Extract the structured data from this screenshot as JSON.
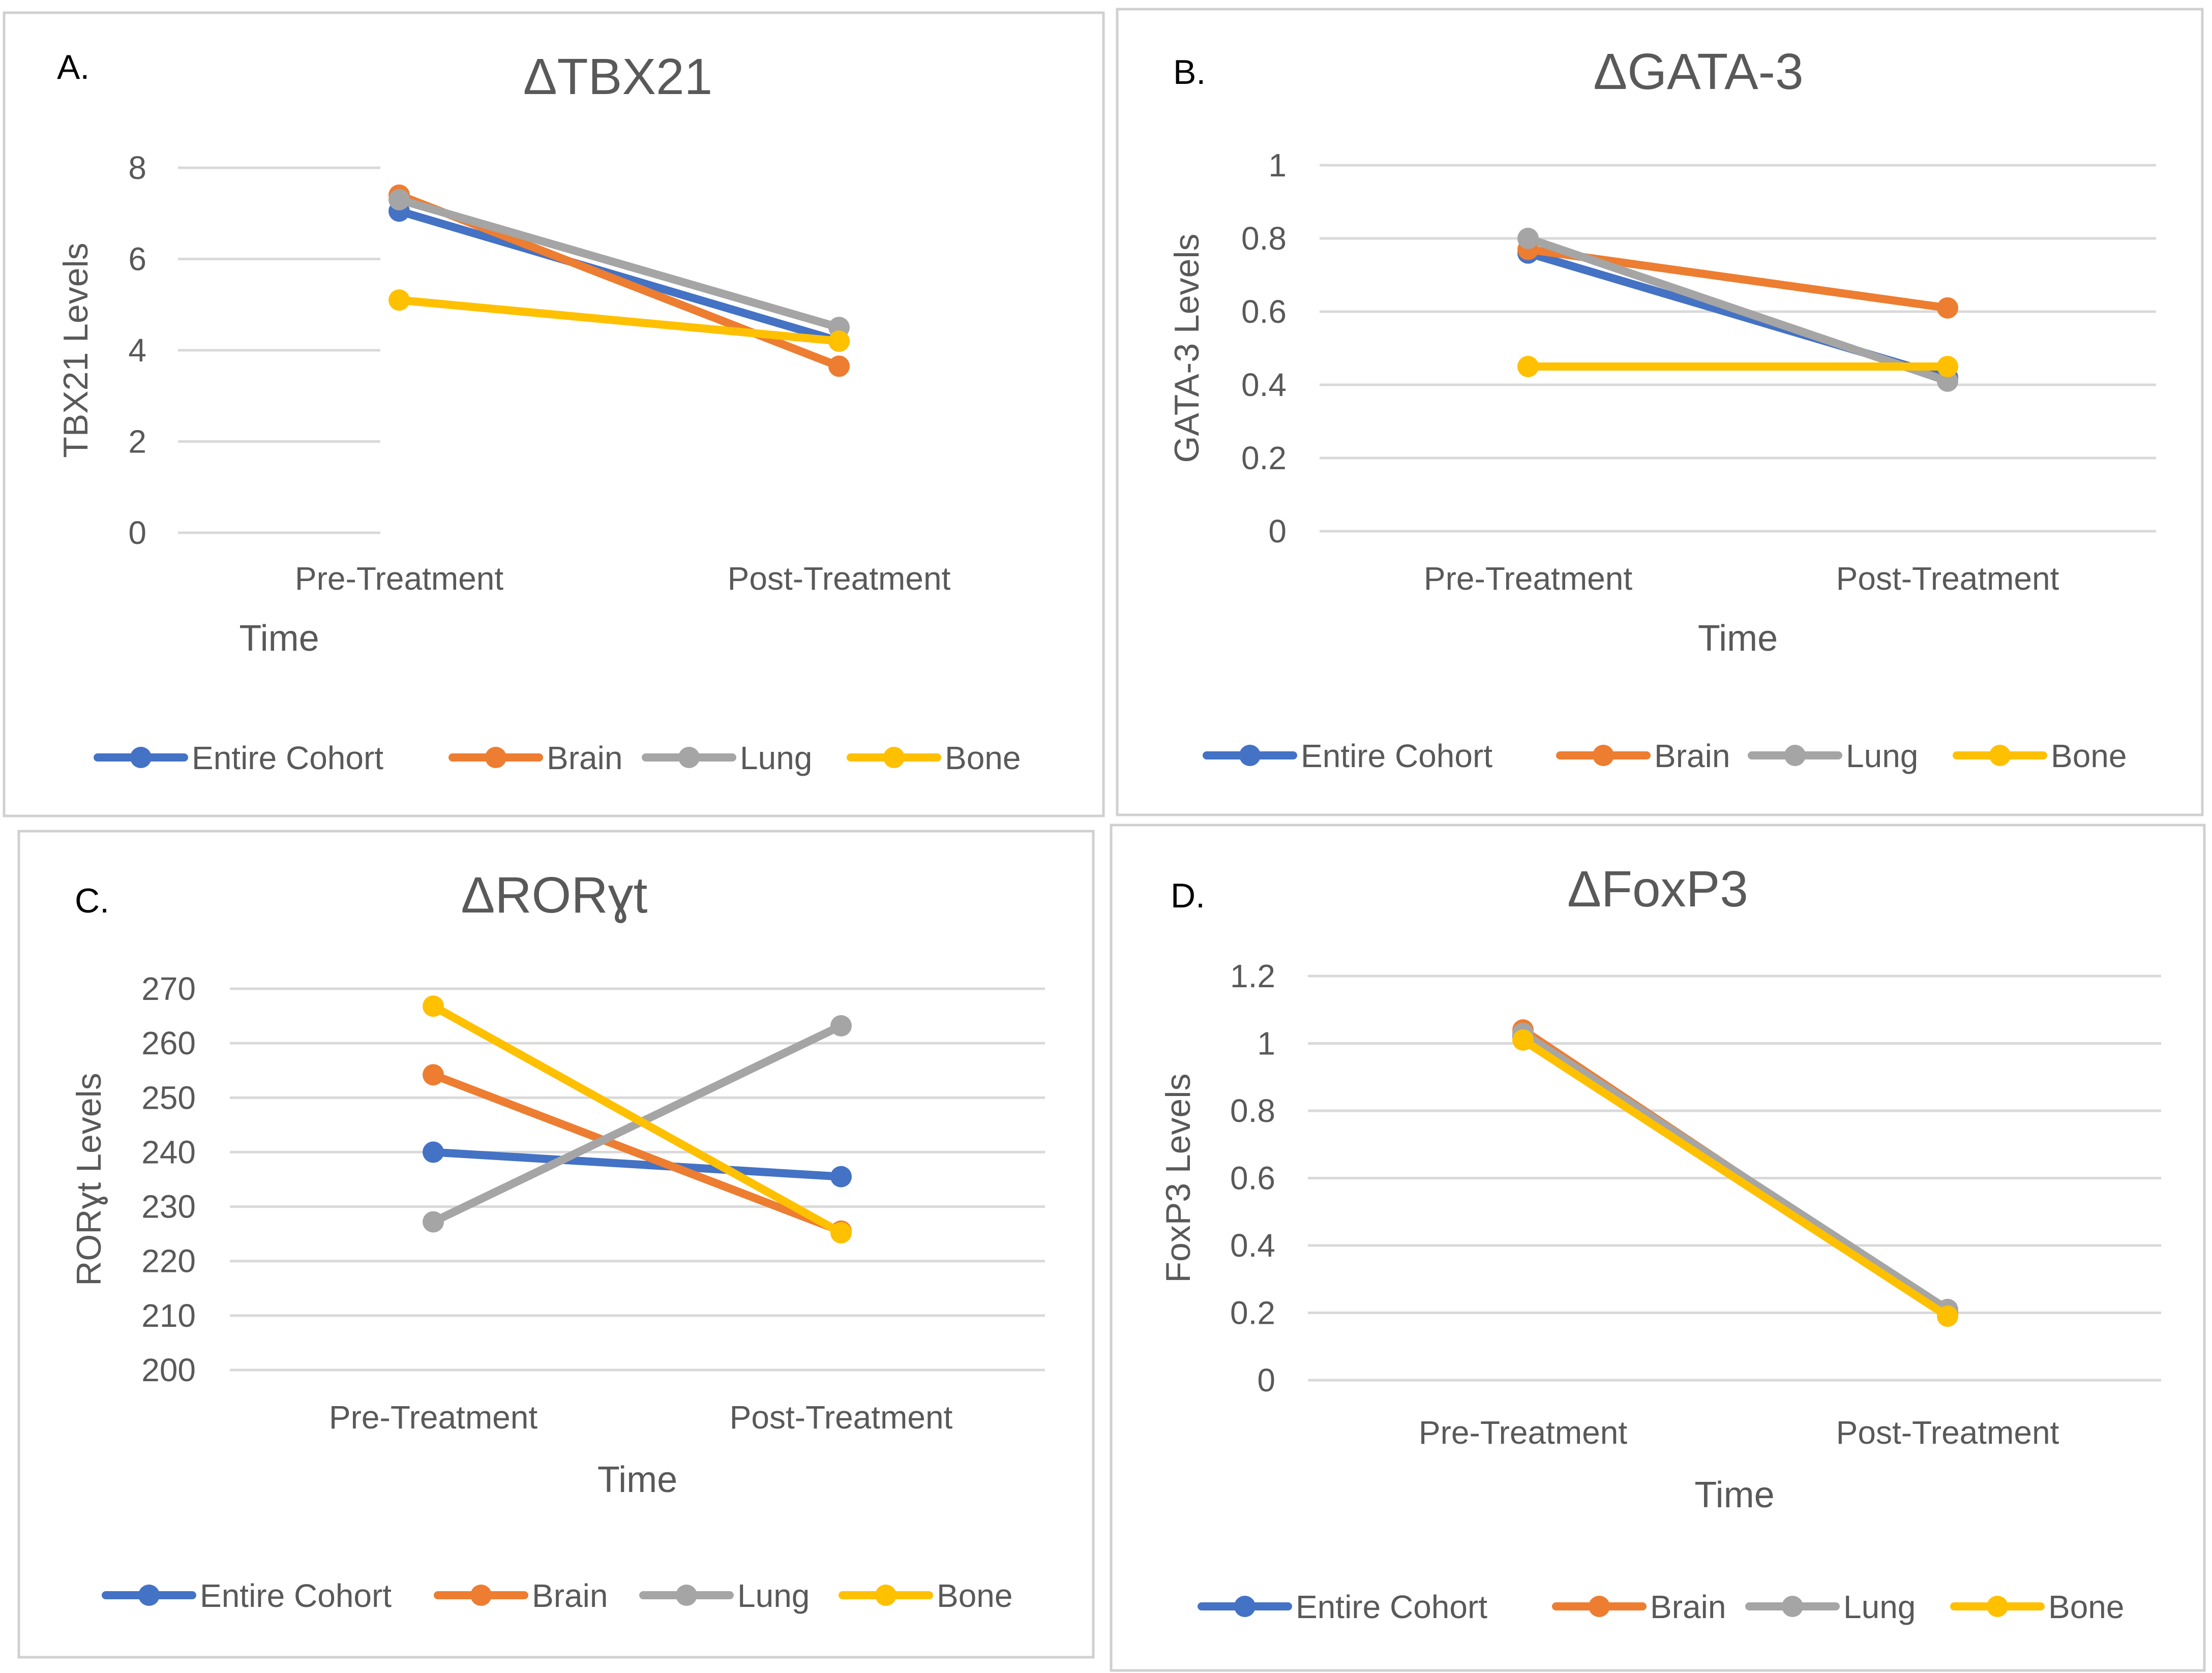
{
  "colors": {
    "series": [
      "#4472C4",
      "#ED7D31",
      "#A5A5A5",
      "#FFC000"
    ],
    "gridline": "#D9D9D9",
    "panel_border": "#D0D0D0",
    "text": "#595959",
    "panel_letter": "#000000"
  },
  "chart_data": [
    {
      "type": "line",
      "panel_label": "A.",
      "title": "ΔTBX21",
      "xlabel": "Time",
      "ylabel": "TBX21 Levels",
      "categories": [
        "Pre-Treatment",
        "Post-Treatment"
      ],
      "ylim": [
        0,
        8
      ],
      "yticks": [
        0,
        2,
        4,
        6,
        8
      ],
      "ytick_labels": [
        "0",
        "2",
        "4",
        "6",
        "8"
      ],
      "grid": true,
      "legend": "bottom",
      "series": [
        {
          "name": "Entire Cohort",
          "values": [
            7.05,
            4.2
          ]
        },
        {
          "name": "Brain",
          "values": [
            7.4,
            3.65
          ]
        },
        {
          "name": "Lung",
          "values": [
            7.3,
            4.5
          ]
        },
        {
          "name": "Bone",
          "values": [
            5.1,
            4.2
          ]
        }
      ]
    },
    {
      "type": "line",
      "panel_label": "B.",
      "title": "ΔGATA-3",
      "xlabel": "Time",
      "ylabel": "GATA-3 Levels",
      "categories": [
        "Pre-Treatment",
        "Post-Treatment"
      ],
      "ylim": [
        0,
        1
      ],
      "yticks": [
        0,
        0.2,
        0.4,
        0.6,
        0.8,
        1
      ],
      "ytick_labels": [
        "0",
        "0.2",
        "0.4",
        "0.6",
        "0.8",
        "1"
      ],
      "grid": true,
      "legend": "bottom",
      "series": [
        {
          "name": "Entire Cohort",
          "values": [
            0.76,
            0.42
          ]
        },
        {
          "name": "Brain",
          "values": [
            0.77,
            0.61
          ]
        },
        {
          "name": "Lung",
          "values": [
            0.8,
            0.41
          ]
        },
        {
          "name": "Bone",
          "values": [
            0.45,
            0.45
          ]
        }
      ]
    },
    {
      "type": "line",
      "panel_label": "C.",
      "title": "ΔRORɣt",
      "xlabel": "Time",
      "ylabel": "RORɣt Levels",
      "categories": [
        "Pre-Treatment",
        "Post-Treatment"
      ],
      "ylim": [
        200,
        270
      ],
      "yticks": [
        200,
        210,
        220,
        230,
        240,
        250,
        260,
        270
      ],
      "ytick_labels": [
        "200",
        "210",
        "220",
        "230",
        "240",
        "250",
        "260",
        "270"
      ],
      "grid": true,
      "legend": "bottom",
      "series": [
        {
          "name": "Entire Cohort",
          "values": [
            240,
            235.5
          ]
        },
        {
          "name": "Brain",
          "values": [
            254.2,
            225.5
          ]
        },
        {
          "name": "Lung",
          "values": [
            227.2,
            263.2
          ]
        },
        {
          "name": "Bone",
          "values": [
            266.8,
            225.2
          ]
        }
      ]
    },
    {
      "type": "line",
      "panel_label": "D.",
      "title": "ΔFoxP3",
      "xlabel": "Time",
      "ylabel": "FoxP3 Levels",
      "categories": [
        "Pre-Treatment",
        "Post-Treatment"
      ],
      "ylim": [
        0,
        1.2
      ],
      "yticks": [
        0,
        0.2,
        0.4,
        0.6,
        0.8,
        1,
        1.2
      ],
      "ytick_labels": [
        "0",
        "0.2",
        "0.4",
        "0.6",
        "0.8",
        "1",
        "1.2"
      ],
      "grid": true,
      "legend": "bottom",
      "series": [
        {
          "name": "Entire Cohort",
          "values": [
            1.02,
            0.2
          ]
        },
        {
          "name": "Brain",
          "values": [
            1.04,
            0.2
          ]
        },
        {
          "name": "Lung",
          "values": [
            1.03,
            0.21
          ]
        },
        {
          "name": "Bone",
          "values": [
            1.01,
            0.19
          ]
        }
      ]
    }
  ]
}
